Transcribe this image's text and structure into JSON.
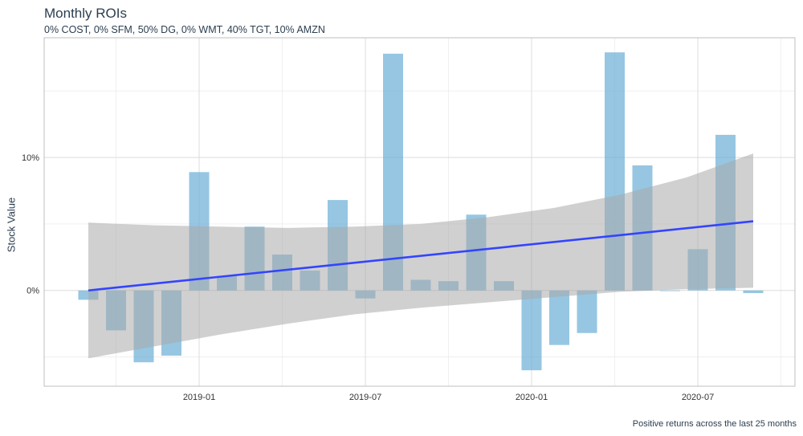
{
  "chart_data": {
    "type": "bar",
    "title": "Monthly ROIs",
    "subtitle": "0% COST, 0% SFM, 50% DG, 0% WMT, 40% TGT, 10% AMZN",
    "ylabel": "Stock Value",
    "xlabel": "",
    "caption": "Positive returns across the last 25 months",
    "x": [
      "2018-09",
      "2018-10",
      "2018-11",
      "2018-12",
      "2019-01",
      "2019-02",
      "2019-03",
      "2019-04",
      "2019-05",
      "2019-06",
      "2019-07",
      "2019-08",
      "2019-09",
      "2019-10",
      "2019-11",
      "2019-12",
      "2020-01",
      "2020-02",
      "2020-03",
      "2020-04",
      "2020-05",
      "2020-06",
      "2020-07",
      "2020-08",
      "2020-09"
    ],
    "values": [
      -0.7,
      -3.0,
      -5.4,
      -4.9,
      8.9,
      1.1,
      4.8,
      2.7,
      1.5,
      6.8,
      -0.6,
      17.8,
      0.8,
      0.7,
      5.7,
      0.7,
      -6.0,
      -4.1,
      -3.2,
      17.9,
      9.4,
      0.0,
      3.1,
      11.7,
      -0.2
    ],
    "trend": {
      "start": 0.0,
      "end": 5.2
    },
    "band": {
      "lower": [
        -5.1,
        -4.2,
        -3.3,
        -2.5,
        -1.8,
        -1.3,
        -0.9,
        -0.5,
        -0.1,
        0.1,
        0.2
      ],
      "upper": [
        5.1,
        4.9,
        4.8,
        4.7,
        4.8,
        5.0,
        5.5,
        6.2,
        7.2,
        8.5,
        10.3
      ]
    },
    "x_ticks": [
      "2019-01",
      "2019-07",
      "2020-01",
      "2020-07"
    ],
    "y_ticks": [
      "0%",
      "10%"
    ],
    "ylim": [
      -7.2,
      19.0
    ],
    "grid": true,
    "colors": {
      "bar": "#6aaed6",
      "trend": "#3344ff",
      "band": "#aaaaaa"
    }
  }
}
